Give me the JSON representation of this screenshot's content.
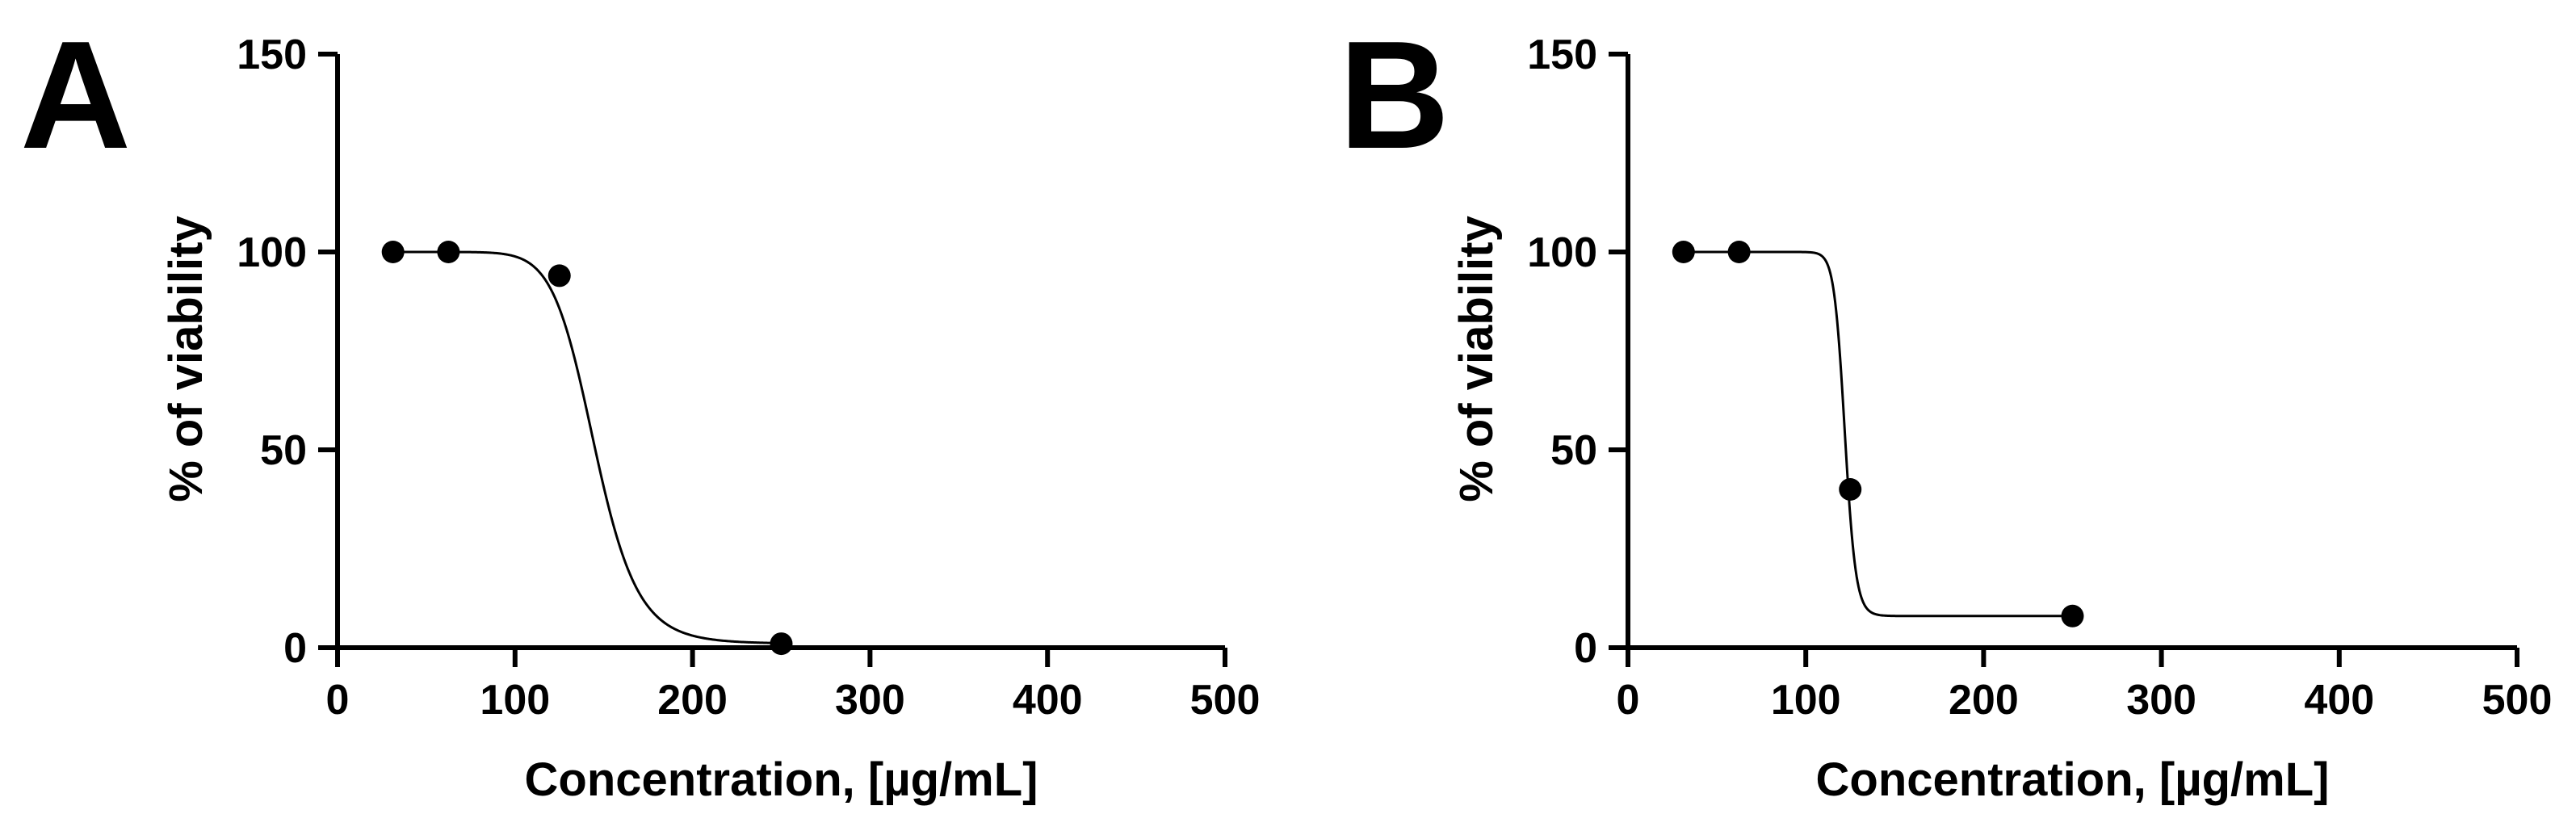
{
  "chart_data": [
    {
      "type": "scatter",
      "panel_label": "A",
      "xlabel": "Concentration,  [µg/mL]",
      "ylabel": "% of viability",
      "xlim": [
        0,
        500
      ],
      "ylim": [
        0,
        150
      ],
      "xticks": [
        0,
        100,
        200,
        300,
        400,
        500
      ],
      "yticks": [
        0,
        50,
        100,
        150
      ],
      "grid": false,
      "points": [
        {
          "x": 31.25,
          "y": 100
        },
        {
          "x": 62.5,
          "y": 100
        },
        {
          "x": 125,
          "y": 94
        },
        {
          "x": 250,
          "y": 1
        }
      ],
      "fit": {
        "top": 100,
        "bottom": 1,
        "ec50": 145,
        "hill": 12
      }
    },
    {
      "type": "scatter",
      "panel_label": "B",
      "xlabel": "Concentration,  [µg/mL]",
      "ylabel": "% of viability",
      "xlim": [
        0,
        500
      ],
      "ylim": [
        0,
        150
      ],
      "xticks": [
        0,
        100,
        200,
        300,
        400,
        500
      ],
      "yticks": [
        0,
        50,
        100,
        150
      ],
      "grid": false,
      "points": [
        {
          "x": 31.25,
          "y": 100
        },
        {
          "x": 62.5,
          "y": 100
        },
        {
          "x": 125,
          "y": 40
        },
        {
          "x": 250,
          "y": 8
        }
      ],
      "fit": {
        "top": 100,
        "bottom": 8,
        "ec50": 122,
        "hill": 40
      }
    }
  ]
}
